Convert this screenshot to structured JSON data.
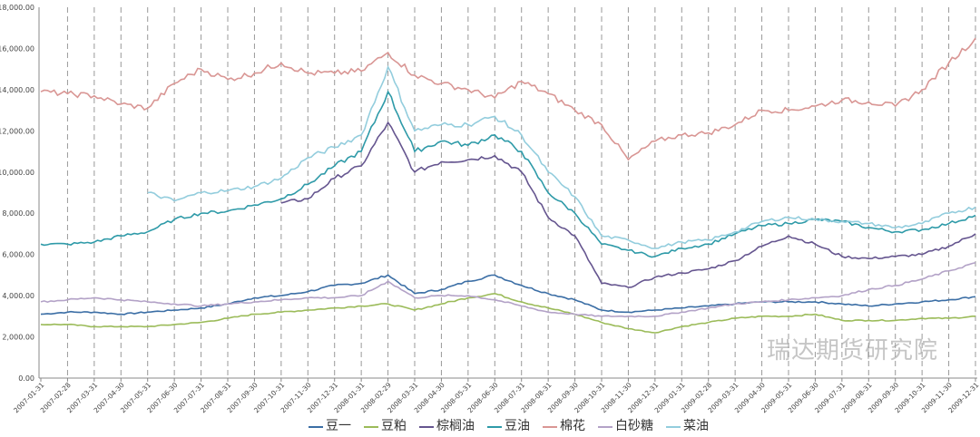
{
  "chart_data": {
    "type": "line",
    "title": "",
    "xlabel": "",
    "ylabel": "",
    "ylim": [
      0,
      18000
    ],
    "yticks": [
      "0.00",
      "2,000.00",
      "4,000.00",
      "6,000.00",
      "8,000.00",
      "10,000.00",
      "12,000.00",
      "14,000.00",
      "16,000.00",
      "18,000.00"
    ],
    "grid": "vertical dashed at each month",
    "legend_position": "bottom",
    "x": [
      "2007-01-31",
      "2007-02-28",
      "2007-03-31",
      "2007-04-30",
      "2007-05-31",
      "2007-06-30",
      "2007-07-31",
      "2007-08-31",
      "2007-09-30",
      "2007-10-31",
      "2007-11-30",
      "2007-12-31",
      "2008-01-31",
      "2008-02-29",
      "2008-03-31",
      "2008-04-30",
      "2008-05-31",
      "2008-06-30",
      "2008-07-31",
      "2008-08-31",
      "2008-09-30",
      "2008-10-31",
      "2008-11-30",
      "2008-12-31",
      "2009-01-31",
      "2009-02-28",
      "2009-03-31",
      "2009-04-30",
      "2009-05-31",
      "2009-06-30",
      "2009-07-31",
      "2009-08-31",
      "2009-09-30",
      "2009-10-31",
      "2009-11-30",
      "2009-12-31"
    ],
    "series": [
      {
        "name": "豆一",
        "color": "#3b6ea5",
        "values": [
          3100,
          3200,
          3200,
          3100,
          3200,
          3300,
          3400,
          3600,
          3900,
          4000,
          4200,
          4500,
          4600,
          5000,
          4100,
          4300,
          4700,
          5000,
          4500,
          4100,
          3800,
          3300,
          3200,
          3300,
          3400,
          3500,
          3600,
          3700,
          3700,
          3700,
          3600,
          3500,
          3600,
          3700,
          3800,
          3950
        ]
      },
      {
        "name": "豆粕",
        "color": "#9bbb59",
        "values": [
          2600,
          2600,
          2500,
          2500,
          2500,
          2600,
          2700,
          2900,
          3100,
          3200,
          3300,
          3400,
          3500,
          3600,
          3300,
          3600,
          3900,
          4100,
          3700,
          3400,
          3100,
          2700,
          2400,
          2200,
          2500,
          2700,
          2900,
          3000,
          3000,
          3100,
          2800,
          2800,
          2800,
          2900,
          2900,
          3000
        ]
      },
      {
        "name": "棕榈油",
        "color": "#65558f",
        "values": [
          null,
          null,
          null,
          null,
          null,
          null,
          null,
          null,
          null,
          8500,
          8700,
          9700,
          10300,
          12400,
          10000,
          10500,
          10600,
          10800,
          10000,
          7800,
          6900,
          4600,
          4400,
          4900,
          5100,
          5300,
          5700,
          6400,
          6900,
          6500,
          5900,
          5800,
          5900,
          6000,
          6400,
          7000
        ]
      },
      {
        "name": "豆油",
        "color": "#2e9aa8",
        "values": [
          6500,
          6500,
          6600,
          6900,
          7100,
          7700,
          8000,
          8100,
          8400,
          8700,
          9400,
          10300,
          11000,
          13900,
          11000,
          11500,
          11300,
          11800,
          11000,
          9000,
          8000,
          6500,
          6200,
          5900,
          6300,
          6500,
          7000,
          7400,
          7500,
          7700,
          7600,
          7300,
          7100,
          7200,
          7500,
          7900
        ]
      },
      {
        "name": "棉花",
        "color": "#d99694",
        "values": [
          13900,
          13800,
          13700,
          13300,
          13100,
          14300,
          15000,
          14500,
          14800,
          15300,
          14800,
          14800,
          14900,
          15800,
          14700,
          14300,
          14000,
          13600,
          14400,
          13800,
          13000,
          12300,
          10600,
          11500,
          11800,
          11900,
          12300,
          13000,
          13000,
          13200,
          13500,
          13400,
          13200,
          14000,
          15300,
          16500
        ]
      },
      {
        "name": "白砂糖",
        "color": "#b3a2c7",
        "values": [
          3700,
          3800,
          3900,
          3800,
          3700,
          3600,
          3500,
          3600,
          3700,
          3800,
          3900,
          3900,
          4000,
          4700,
          3900,
          4000,
          4000,
          3800,
          3500,
          3200,
          3100,
          3000,
          3000,
          3000,
          3200,
          3400,
          3600,
          3700,
          3800,
          3900,
          4000,
          4300,
          4500,
          4800,
          5200,
          5600
        ]
      },
      {
        "name": "菜油",
        "color": "#93cddd",
        "values": [
          null,
          null,
          null,
          null,
          9000,
          8600,
          9000,
          9100,
          9300,
          9700,
          10700,
          11200,
          11800,
          15100,
          12000,
          12300,
          12300,
          12700,
          11800,
          10000,
          8800,
          6900,
          6700,
          6300,
          6600,
          6700,
          7100,
          7600,
          7800,
          7700,
          7600,
          7500,
          7300,
          7500,
          8000,
          8300
        ]
      }
    ]
  },
  "watermark": "瑞达期货研究院"
}
